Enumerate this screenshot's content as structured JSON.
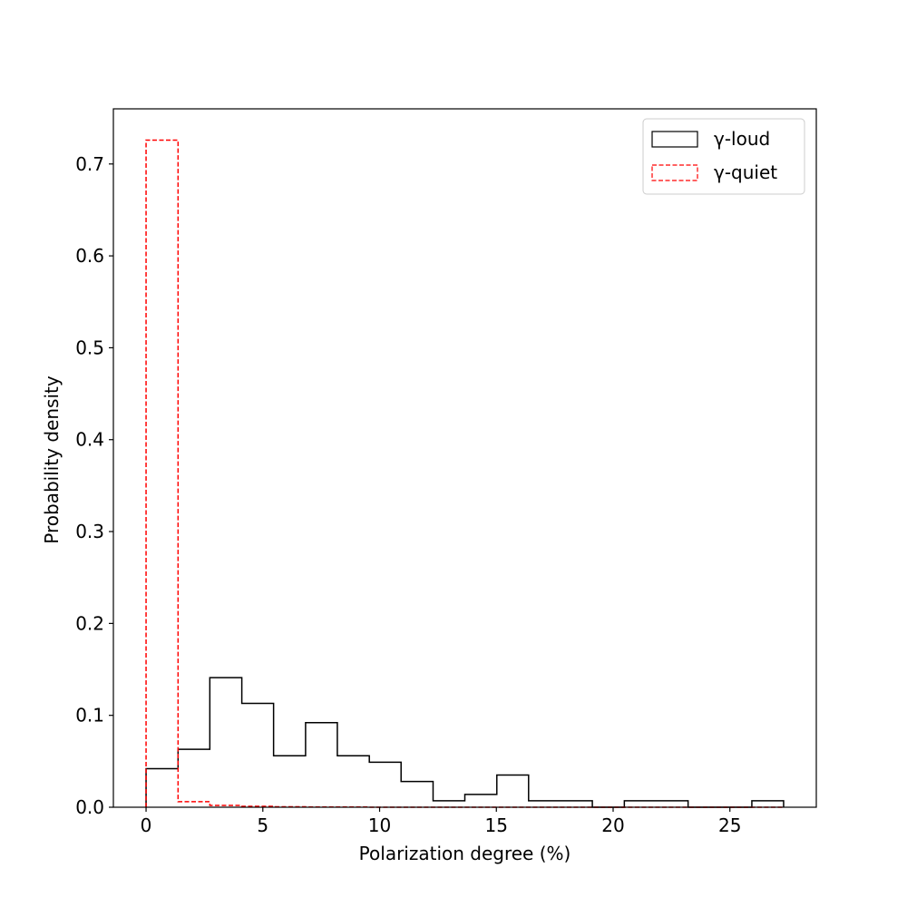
{
  "chart_data": {
    "type": "histogram",
    "xlabel": "Polarization  degree (%)",
    "ylabel": "Probability  density",
    "xlim": [
      -1.4,
      28.7
    ],
    "ylim": [
      0,
      0.76
    ],
    "xticks": [
      0,
      5,
      10,
      15,
      20,
      25
    ],
    "xtick_labels": [
      "0",
      "5",
      "10",
      "15",
      "20",
      "25"
    ],
    "yticks": [
      0.0,
      0.1,
      0.2,
      0.3,
      0.4,
      0.5,
      0.6,
      0.7
    ],
    "ytick_labels": [
      "0.0",
      "0.1",
      "0.2",
      "0.3",
      "0.4",
      "0.5",
      "0.6",
      "0.7"
    ],
    "grid": false,
    "legend_position": "top-right",
    "series": [
      {
        "name": "γ-loud",
        "color": "#000000",
        "line_style": "solid",
        "bin_edges": [
          0.0,
          1.37,
          2.73,
          4.1,
          5.46,
          6.83,
          8.19,
          9.56,
          10.92,
          12.29,
          13.65,
          15.02,
          16.38,
          17.75,
          19.11,
          20.48,
          21.84,
          23.21,
          24.57,
          25.94,
          27.3
        ],
        "values": [
          0.042,
          0.063,
          0.141,
          0.113,
          0.056,
          0.092,
          0.056,
          0.049,
          0.028,
          0.007,
          0.014,
          0.035,
          0.007,
          0.007,
          0.0,
          0.007,
          0.007,
          0.0,
          0.0,
          0.007
        ]
      },
      {
        "name": "γ-quiet",
        "color": "#ff0000",
        "line_style": "dashed",
        "bin_edges": [
          0.0,
          1.37,
          2.73,
          4.1,
          5.46,
          6.83,
          8.19,
          9.56,
          10.92,
          12.29,
          13.65,
          15.02,
          16.38,
          17.75,
          19.11,
          20.48,
          21.84,
          23.21,
          24.57,
          25.94,
          27.3
        ],
        "values": [
          0.726,
          0.006,
          0.002,
          0.001,
          0.0005,
          0.0003,
          0.0002,
          0.0,
          0.0,
          0.0,
          0.0,
          0.0,
          0.0,
          0.0,
          0.0,
          0.0,
          0.0,
          0.0,
          0.0,
          0.0
        ]
      }
    ]
  }
}
